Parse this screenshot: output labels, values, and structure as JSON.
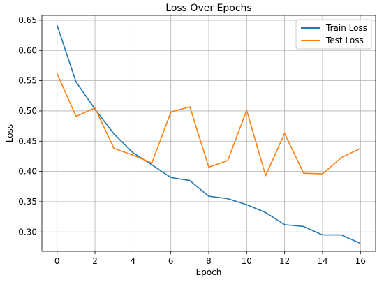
{
  "chart_data": {
    "type": "line",
    "title": "Loss Over Epochs",
    "xlabel": "Epoch",
    "ylabel": "Loss",
    "xlim": [
      -0.8,
      16.8
    ],
    "ylim": [
      0.268,
      0.658
    ],
    "xticks": [
      0,
      2,
      4,
      6,
      8,
      10,
      12,
      14,
      16
    ],
    "yticks": [
      0.3,
      0.35,
      0.4,
      0.45,
      0.5,
      0.55,
      0.6,
      0.65
    ],
    "ytick_labels": [
      "0.30",
      "0.35",
      "0.40",
      "0.45",
      "0.50",
      "0.55",
      "0.60",
      "0.65"
    ],
    "grid": true,
    "legend_position": "top-right",
    "x": [
      0,
      1,
      2,
      3,
      4,
      5,
      6,
      7,
      8,
      9,
      10,
      11,
      12,
      13,
      14,
      15,
      16
    ],
    "series": [
      {
        "name": "Train Loss",
        "color": "#1f77b4",
        "values": [
          0.642,
          0.548,
          0.503,
          0.462,
          0.431,
          0.411,
          0.39,
          0.385,
          0.359,
          0.355,
          0.345,
          0.332,
          0.312,
          0.309,
          0.295,
          0.295,
          0.281
        ]
      },
      {
        "name": "Test Loss",
        "color": "#ff7f0e",
        "values": [
          0.562,
          0.491,
          0.505,
          0.438,
          0.427,
          0.414,
          0.498,
          0.507,
          0.407,
          0.418,
          0.501,
          0.393,
          0.463,
          0.397,
          0.396,
          0.423,
          0.438
        ]
      }
    ]
  }
}
